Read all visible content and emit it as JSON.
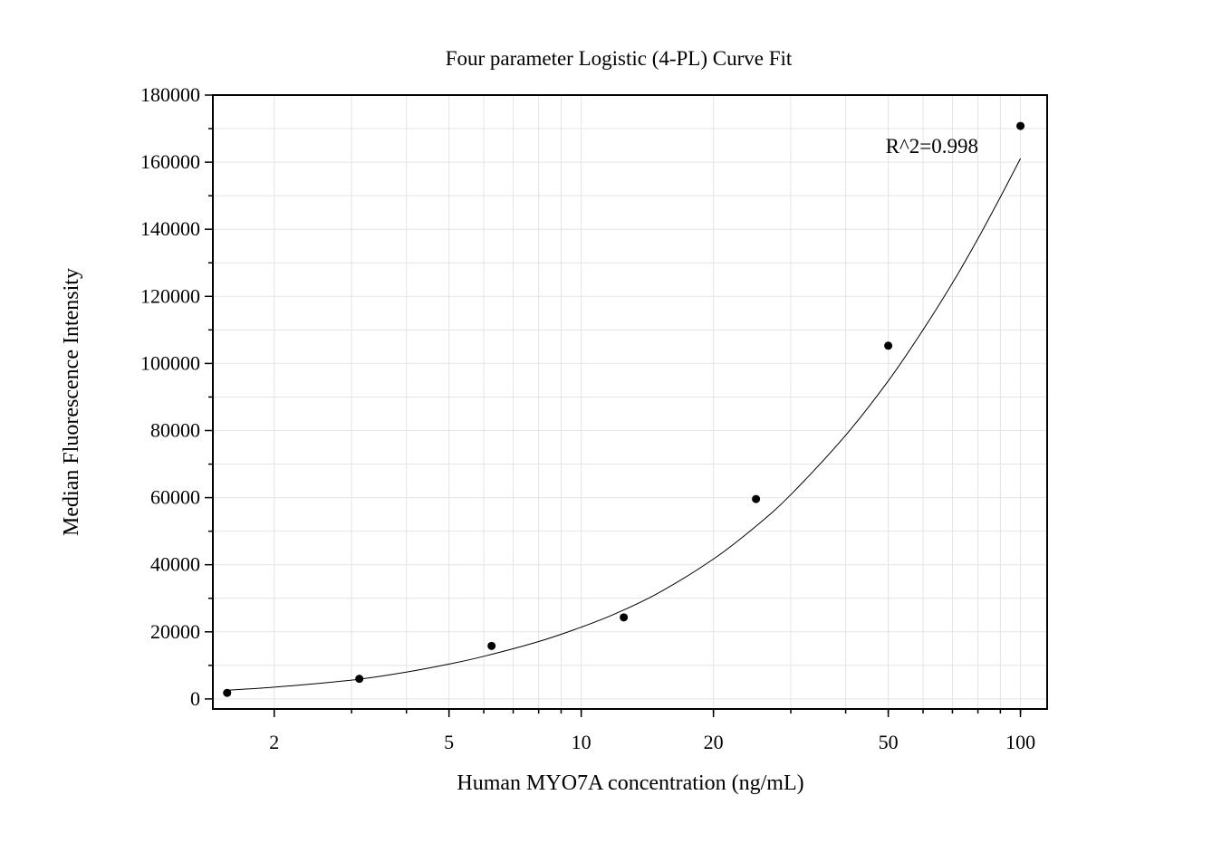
{
  "chart_data": {
    "type": "scatter",
    "title": "Four parameter Logistic (4-PL) Curve Fit",
    "xlabel": "Human MYO7A concentration (ng/mL)",
    "ylabel": "Median Fluorescence Intensity",
    "x_scale": "log",
    "xlim": [
      1.45,
      115
    ],
    "ylim": [
      -3000,
      180000
    ],
    "x_ticks": [
      2,
      5,
      10,
      20,
      50,
      100
    ],
    "x_tick_labels": [
      "2",
      "5",
      "10",
      "20",
      "50",
      "100"
    ],
    "y_ticks": [
      0,
      20000,
      40000,
      60000,
      80000,
      100000,
      120000,
      140000,
      160000,
      180000
    ],
    "y_tick_labels": [
      "0",
      "20000",
      "40000",
      "60000",
      "80000",
      "100000",
      "120000",
      "140000",
      "160000",
      "180000"
    ],
    "grid": true,
    "series": [
      {
        "type": "scatter",
        "x": [
          1.5625,
          3.125,
          6.25,
          12.5,
          25,
          50,
          100
        ],
        "y": [
          1800,
          6000,
          15800,
          24300,
          59600,
          105300,
          170800
        ]
      },
      {
        "type": "line",
        "x": [
          1.5625,
          2,
          3,
          4,
          5,
          6,
          8,
          10,
          12,
          15,
          20,
          25,
          30,
          40,
          50,
          60,
          70,
          80,
          90,
          100
        ],
        "y": [
          2600,
          3500,
          5600,
          8000,
          10400,
          12700,
          17100,
          21400,
          25500,
          31600,
          41700,
          51500,
          60900,
          78600,
          94800,
          110000,
          124000,
          137200,
          149600,
          161100
        ]
      }
    ],
    "annotations": [
      {
        "text": "R^2=0.998"
      }
    ]
  }
}
